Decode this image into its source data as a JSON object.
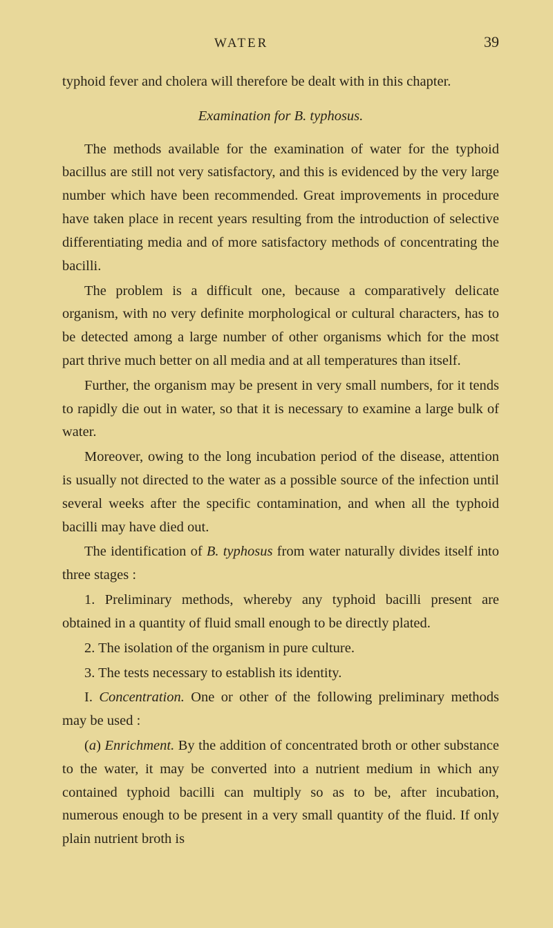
{
  "page": {
    "running_head": "WATER",
    "page_number": "39"
  },
  "intro_para": "typhoid fever and cholera will therefore be dealt with in this chapter.",
  "section_title_prefix": "Examination for ",
  "section_title_italic": "B. typhosus.",
  "paragraphs": {
    "p1": "The methods available for the examination of water for the typhoid bacillus are still not very satisfactory, and this is evidenced by the very large number which have been recommended. Great improvements in procedure have taken place in recent years resulting from the introduction of selective differentiating media and of more satisfactory methods of concentrating the bacilli.",
    "p2": "The problem is a difficult one, because a comparatively delicate organism, with no very definite morphological or cultural characters, has to be detected among a large number of other organisms which for the most part thrive much better on all media and at all temperatures than itself.",
    "p3": "Further, the organism may be present in very small numbers, for it tends to rapidly die out in water, so that it is necessary to examine a large bulk of water.",
    "p4": "Moreover, owing to the long incubation period of the disease, attention is usually not directed to the water as a possible source of the infection until several weeks after the specific contamination, and when all the typhoid bacilli may have died out.",
    "p5_pre": "The identification of ",
    "p5_italic": "B. typhosus",
    "p5_post": " from water naturally divides itself into three stages :",
    "item1": "1. Preliminary methods, whereby any typhoid bacilli present are obtained in a quantity of fluid small enough to be directly plated.",
    "item2": "2. The isolation of the organism in pure culture.",
    "item3": "3. The tests necessary to establish its identity.",
    "sub1_num": "I. ",
    "sub1_italic": "Concentration.",
    "sub1_post": " One or other of the following preliminary methods may be used :",
    "sub_a_pre": "(",
    "sub_a_letter": "a",
    "sub_a_paren": ") ",
    "sub_a_italic": "Enrichment.",
    "sub_a_post": " By the addition of concentrated broth or other substance to the water, it may be converted into a nutrient medium in which any contained typhoid bacilli can multiply so as to be, after incubation, numerous enough to be present in a very small quantity of the fluid. If only plain nutrient broth is"
  }
}
